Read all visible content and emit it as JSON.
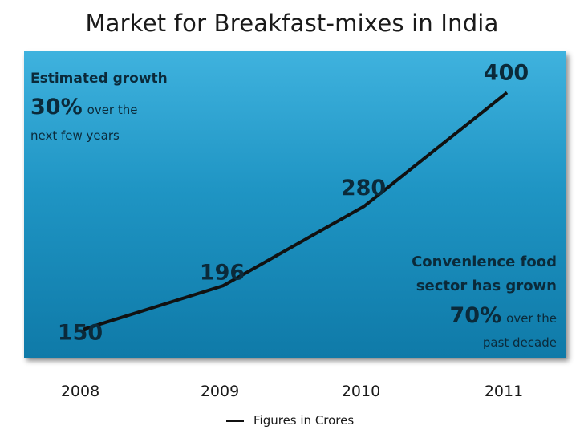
{
  "title": "Market for Breakfast-mixes in India",
  "colors": {
    "line": "#111111",
    "data_label": "#0b2a3a"
  },
  "annotations": {
    "left": {
      "line1": "Estimated growth",
      "big": "30%",
      "small": "over the",
      "line3": "next few years"
    },
    "right": {
      "line1": "Convenience food",
      "line2": "sector has grown",
      "big": "70%",
      "small": "over the",
      "line4": "past decade"
    }
  },
  "legend": {
    "label": "Figures in Crores"
  },
  "chart_data": {
    "type": "line",
    "title": "Market for Breakfast-mixes in India",
    "categories": [
      "2008",
      "2009",
      "2010",
      "2011"
    ],
    "series": [
      {
        "name": "Figures in Crores",
        "values": [
          150,
          196,
          280,
          400
        ],
        "data_labels": [
          "150",
          "196",
          "280",
          "400"
        ]
      }
    ],
    "xlabel": "",
    "ylabel": "",
    "ylim": [
      120,
      430
    ],
    "grid": false,
    "legend_position": "bottom"
  }
}
